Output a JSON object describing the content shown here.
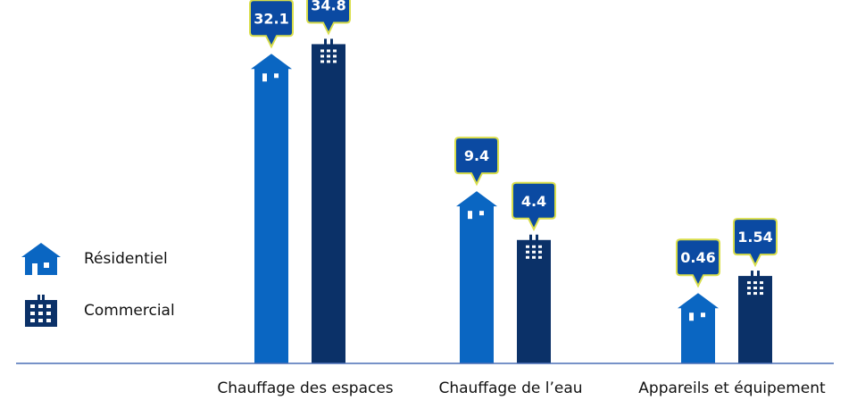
{
  "colors": {
    "residential": "#0a66c2",
    "commercial": "#0b3168",
    "bubble_fill": "#0b4aa2",
    "bubble_border": "#d9de4b",
    "axis": "#4a6fb5"
  },
  "legend": {
    "items": [
      {
        "label": "Résidentiel",
        "icon": "house-icon"
      },
      {
        "label": "Commercial",
        "icon": "building-icon"
      }
    ]
  },
  "chart_data": {
    "type": "bar",
    "categories": [
      "Chauffage des espaces",
      "Chauffage de l’eau",
      "Appareils et équipement"
    ],
    "series": [
      {
        "name": "Résidentiel",
        "values": [
          32.1,
          9.4,
          0.46
        ],
        "labels": [
          "32.1",
          "9.4",
          "0.46"
        ]
      },
      {
        "name": "Commercial",
        "values": [
          34.8,
          4.4,
          1.54
        ],
        "labels": [
          "34.8",
          "4.4",
          "1.54"
        ]
      }
    ],
    "title": "",
    "xlabel": "",
    "ylabel": "",
    "ylim": [
      0,
      36
    ],
    "grid": false,
    "legend_position": "left"
  }
}
